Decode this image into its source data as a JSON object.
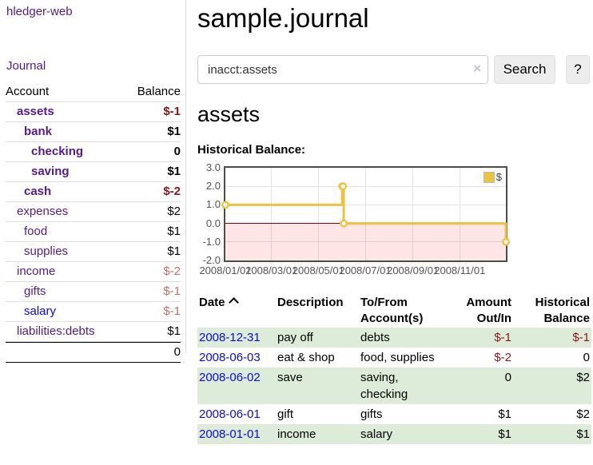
{
  "sidebar": {
    "brand": "hledger-web",
    "nav": {
      "journal": "Journal"
    },
    "table": {
      "account_header": "Account",
      "balance_header": "Balance"
    },
    "rows": [
      {
        "account": "assets",
        "balance": "$-1"
      },
      {
        "account": "bank",
        "balance": "$1"
      },
      {
        "account": "checking",
        "balance": "0"
      },
      {
        "account": "saving",
        "balance": "$1"
      },
      {
        "account": "cash",
        "balance": "$-2"
      },
      {
        "account": "expenses",
        "balance": "$2"
      },
      {
        "account": "food",
        "balance": "$1"
      },
      {
        "account": "supplies",
        "balance": "$1"
      },
      {
        "account": "income",
        "balance": "$-2"
      },
      {
        "account": "gifts",
        "balance": "$-1"
      },
      {
        "account": "salary",
        "balance": "$-1"
      },
      {
        "account": "liabilities:debts",
        "balance": "$1"
      }
    ],
    "total": "0"
  },
  "main": {
    "title": "sample.journal",
    "search": {
      "value": "inacct:assets",
      "clear_icon": "×",
      "search_button": "Search",
      "help_button": "?"
    },
    "account_heading": "assets",
    "chart_heading": "Historical Balance:"
  },
  "chart_data": {
    "type": "line",
    "title": "Historical Balance:",
    "steps": true,
    "series": [
      {
        "name": "$",
        "color": "#edc240",
        "points": [
          [
            "2008-01-01",
            1
          ],
          [
            "2008-06-01",
            2
          ],
          [
            "2008-06-02",
            2
          ],
          [
            "2008-06-03",
            0
          ],
          [
            "2008-12-31",
            -1
          ]
        ]
      }
    ],
    "xlim": [
      "2008-01-01",
      "2008-12-31"
    ],
    "ylim": [
      -2,
      3
    ],
    "x_ticks": [
      "2008/01/01",
      "2008/03/01",
      "2008/05/01",
      "2008/07/01",
      "2008/09/01",
      "2008/11/01"
    ],
    "y_ticks": [
      "3.0",
      "2.0",
      "1.0",
      "0.0",
      "-1.0",
      "-2.0"
    ],
    "grid": true,
    "legend_position": "top-right",
    "negative_region_color": "rgba(255,70,70,0.14)",
    "zero_line_color": "#8b0000"
  },
  "register": {
    "columns": [
      {
        "l1": "Date"
      },
      {
        "l1": "Description"
      },
      {
        "l1": "To/From",
        "l2": "Account(s)"
      },
      {
        "l1": "Amount",
        "l2": "Out/In"
      },
      {
        "l1": "Historical",
        "l2": "Balance"
      }
    ],
    "rows": [
      {
        "date": "2008-12-31",
        "description": "pay off",
        "accounts": "debts",
        "amount": "$-1",
        "balance": "$-1"
      },
      {
        "date": "2008-06-03",
        "description": "eat & shop",
        "accounts": "food, supplies",
        "amount": "$-2",
        "balance": "0"
      },
      {
        "date": "2008-06-02",
        "description": "save",
        "accounts": "saving, checking",
        "amount": "0",
        "balance": "$2"
      },
      {
        "date": "2008-06-01",
        "description": "gift",
        "accounts": "gifts",
        "amount": "$1",
        "balance": "$2"
      },
      {
        "date": "2008-01-01",
        "description": "income",
        "accounts": "salary",
        "amount": "$1",
        "balance": "$1"
      }
    ]
  }
}
